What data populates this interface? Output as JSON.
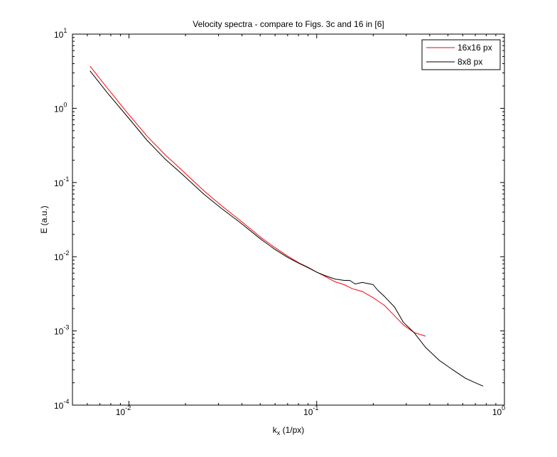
{
  "chart_data": {
    "type": "line",
    "title": "Velocity spectra - compare to Figs. 3c and 16 in [6]",
    "xlabel_base": "k",
    "xlabel_sub": "x",
    "xlabel_rest": " (1/px)",
    "ylabel": "E (a.u.)",
    "xscale": "log",
    "yscale": "log",
    "xlim": [
      0.005,
      1
    ],
    "ylim": [
      0.0001,
      10
    ],
    "grid": false,
    "legend_position": "top-right",
    "x_ticks": [
      {
        "value": 0.01,
        "base": "10",
        "exp": "-2"
      },
      {
        "value": 0.1,
        "base": "10",
        "exp": "-1"
      },
      {
        "value": 1,
        "base": "10",
        "exp": "0"
      }
    ],
    "y_ticks": [
      {
        "value": 0.0001,
        "base": "10",
        "exp": "-4"
      },
      {
        "value": 0.001,
        "base": "10",
        "exp": "-3"
      },
      {
        "value": 0.01,
        "base": "10",
        "exp": "-2"
      },
      {
        "value": 0.1,
        "base": "10",
        "exp": "-1"
      },
      {
        "value": 1,
        "base": "10",
        "exp": "0"
      },
      {
        "value": 10,
        "base": "10",
        "exp": "1"
      }
    ],
    "series": [
      {
        "name": "16x16 px",
        "color": "#ff0000",
        "x": [
          0.0062,
          0.0077,
          0.0097,
          0.0125,
          0.0155,
          0.0195,
          0.025,
          0.031,
          0.039,
          0.05,
          0.06,
          0.07,
          0.08,
          0.09,
          0.1,
          0.11,
          0.125,
          0.14,
          0.155,
          0.175,
          0.2,
          0.23,
          0.26,
          0.29,
          0.33,
          0.38
        ],
        "y": [
          3.7,
          1.85,
          0.9,
          0.42,
          0.24,
          0.14,
          0.078,
          0.049,
          0.031,
          0.0185,
          0.0132,
          0.0102,
          0.0083,
          0.0072,
          0.0062,
          0.0055,
          0.0046,
          0.0042,
          0.0037,
          0.0034,
          0.0028,
          0.0022,
          0.0016,
          0.0012,
          0.00095,
          0.00085
        ]
      },
      {
        "name": "8x8 px",
        "color": "#000000",
        "x": [
          0.0062,
          0.0077,
          0.0097,
          0.0125,
          0.0155,
          0.0195,
          0.025,
          0.031,
          0.039,
          0.05,
          0.06,
          0.07,
          0.08,
          0.09,
          0.1,
          0.11,
          0.125,
          0.14,
          0.15,
          0.16,
          0.175,
          0.2,
          0.21,
          0.23,
          0.26,
          0.29,
          0.33,
          0.38,
          0.45,
          0.53,
          0.62,
          0.7,
          0.77
        ],
        "y": [
          3.2,
          1.6,
          0.8,
          0.37,
          0.21,
          0.125,
          0.07,
          0.045,
          0.029,
          0.0175,
          0.0125,
          0.0098,
          0.0082,
          0.0071,
          0.0062,
          0.0056,
          0.005,
          0.0048,
          0.0048,
          0.0043,
          0.0045,
          0.0042,
          0.0036,
          0.0029,
          0.0021,
          0.0013,
          0.00095,
          0.0006,
          0.0004,
          0.0003,
          0.00023,
          0.0002,
          0.00018
        ]
      }
    ]
  }
}
